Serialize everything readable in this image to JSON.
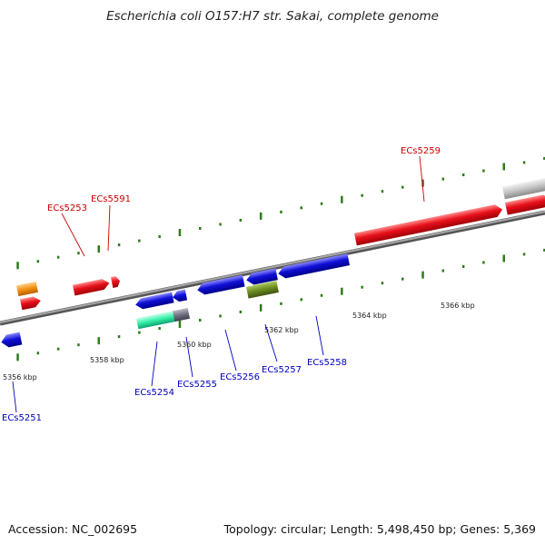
{
  "title": "Escherichia coli O157:H7 str. Sakai, complete genome",
  "footer": {
    "accession": "Accession: NC_002695",
    "summary": "Topology: circular; Length: 5,498,450 bp; Genes: 5,369"
  },
  "scale_labels": [
    "5356 kbp",
    "5358 kbp",
    "5360 kbp",
    "5362 kbp",
    "5364 kbp",
    "5366 kbp"
  ],
  "colors": {
    "forward_label": "#cc0000",
    "reverse_label": "#0000bb",
    "forward_cds": "#e8101a",
    "reverse_cds": "#1010d8",
    "orange_feature": "#f39010",
    "teal_feature": "#33f0a8",
    "olive_feature": "#6b8a1e",
    "grey_feature": "#c4c4c4",
    "backbone": "#8a8a8a",
    "tick": "#2e7d1a"
  },
  "gene_labels": {
    "forward": [
      "ECs5253",
      "ECs5591",
      "ECs5259"
    ],
    "reverse": [
      "ECs5251",
      "ECs5254",
      "ECs5255",
      "ECs5256",
      "ECs5257",
      "ECs5258"
    ]
  }
}
